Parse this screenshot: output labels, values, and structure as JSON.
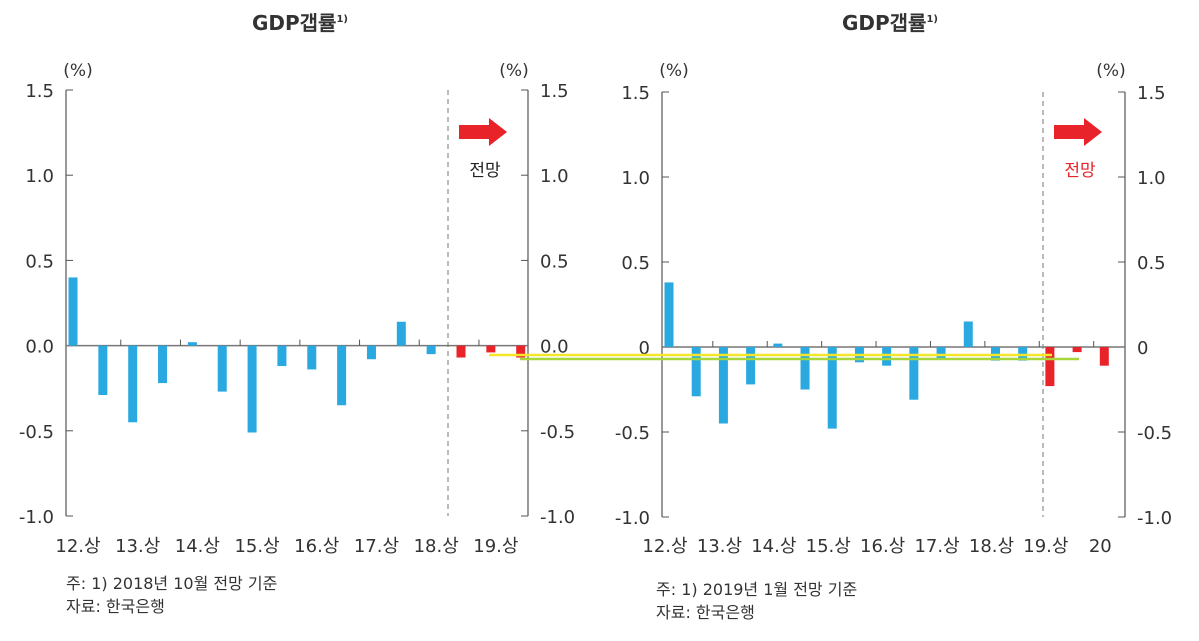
{
  "chart_data": [
    {
      "type": "bar",
      "title": "GDP갭률",
      "title_sup": "1)",
      "ylabel_left": "(%)",
      "ylabel_right": "(%)",
      "ylim": [
        -1.0,
        1.5
      ],
      "yticks": [
        "1.5",
        "1.0",
        "0.5",
        "0.0",
        "-0.5",
        "-1.0"
      ],
      "ytick_values": [
        1.5,
        1.0,
        0.5,
        0.0,
        -0.5,
        -1.0
      ],
      "xtick_labels": [
        "12.상",
        "13.상",
        "14.상",
        "15.상",
        "16.상",
        "17.상",
        "18.상",
        "19.상"
      ],
      "values": [
        0.4,
        -0.29,
        -0.45,
        -0.22,
        0.02,
        -0.27,
        -0.51,
        -0.12,
        -0.14,
        -0.35,
        -0.08,
        0.14,
        -0.05,
        -0.07,
        -0.04,
        -0.07
      ],
      "forecast_start_index": 13,
      "forecast_label": "전망",
      "forecast_label_color": "#222222",
      "colors": {
        "actual": "#29a9df",
        "forecast": "#e8232a",
        "arrow": "#e8232a"
      },
      "note": "주: 1) 2018년 10월 전망 기준",
      "source": "자료: 한국은행",
      "grid": false
    },
    {
      "type": "bar",
      "title": "GDP갭률",
      "title_sup": "1)",
      "ylabel_left": "(%)",
      "ylabel_right": "(%)",
      "ylim": [
        -1.0,
        1.5
      ],
      "yticks": [
        "1.5",
        "1.0",
        "0.5",
        "0",
        "-0.5",
        "-1.0"
      ],
      "ytick_values": [
        1.5,
        1.0,
        0.5,
        0.0,
        -0.5,
        -1.0
      ],
      "xtick_labels": [
        "12.상",
        "13.상",
        "14.상",
        "15.상",
        "16.상",
        "17.상",
        "18.상",
        "19.상",
        "20"
      ],
      "values": [
        0.38,
        -0.29,
        -0.45,
        -0.22,
        0.02,
        -0.25,
        -0.48,
        -0.09,
        -0.11,
        -0.31,
        -0.07,
        0.15,
        -0.08,
        -0.08,
        -0.23,
        -0.03,
        -0.11
      ],
      "forecast_start_index": 14,
      "forecast_label": "전망",
      "forecast_label_color": "#e8232a",
      "colors": {
        "actual": "#29a9df",
        "forecast": "#e8232a",
        "arrow": "#e8232a"
      },
      "note": "주: 1) 2019년 1월 전망 기준",
      "source": "자료: 한국은행",
      "grid": false
    }
  ],
  "highlight_colors": {
    "yellow": "#f5e62a",
    "green": "#a6d63a"
  }
}
